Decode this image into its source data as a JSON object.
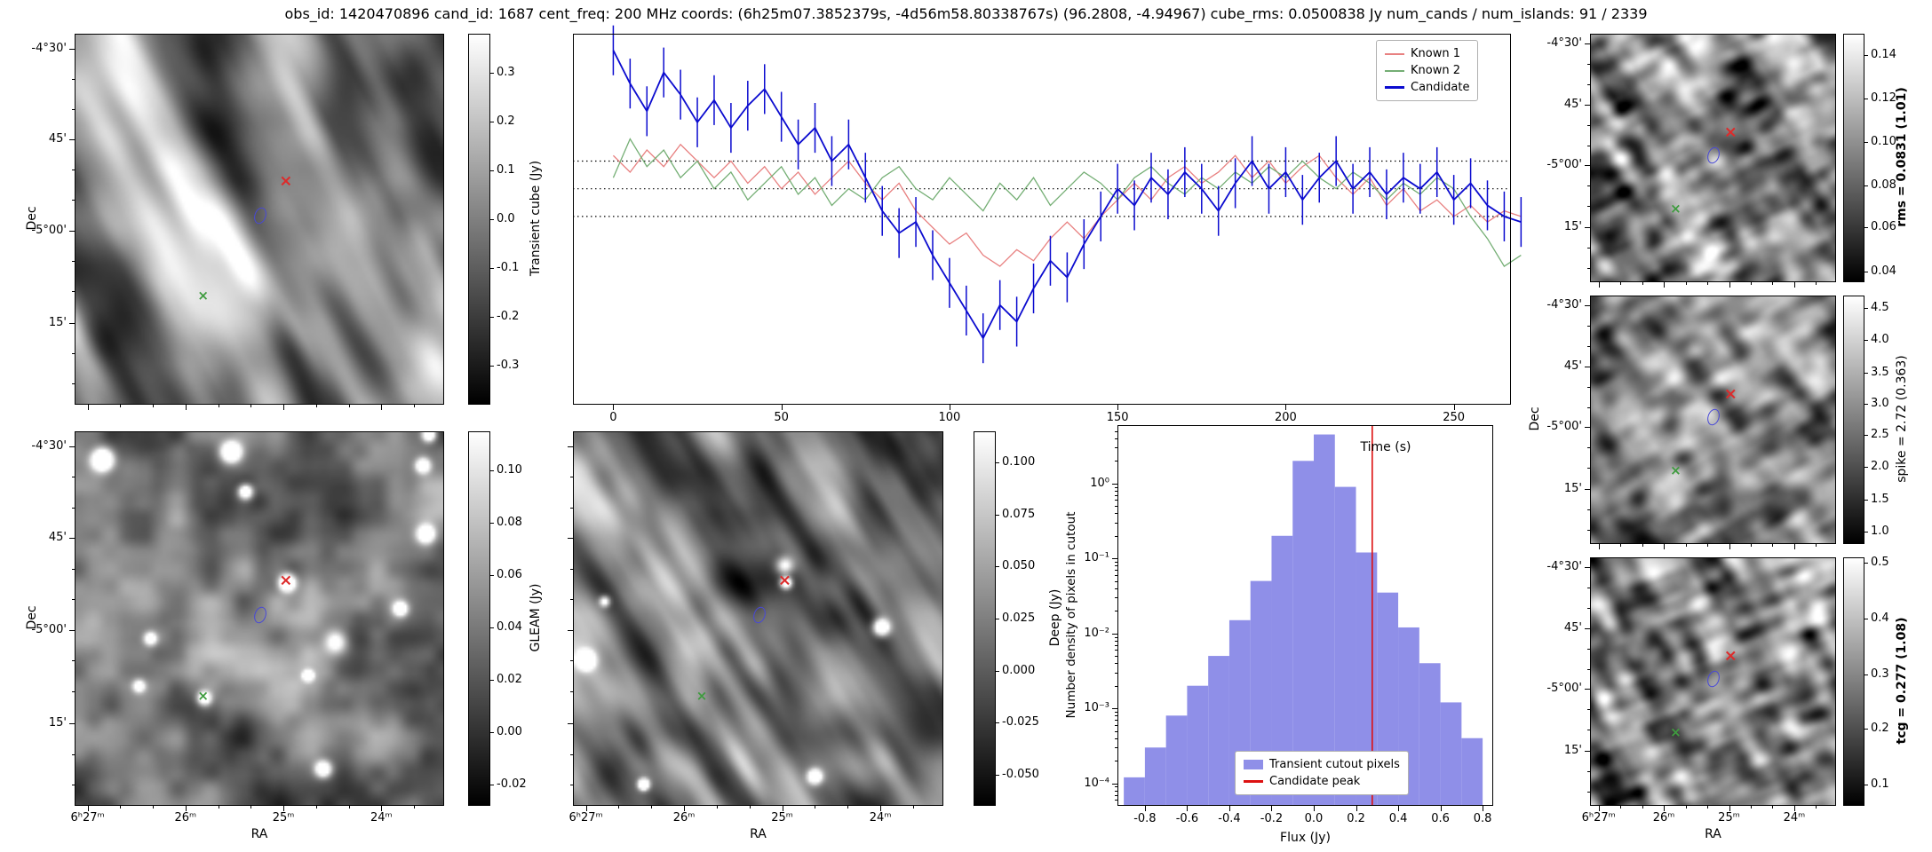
{
  "title": "obs_id: 1420470896 cand_id: 1687 cent_freq: 200 MHz coords: (6h25m07.3852379s, -4d56m58.80338767s) (96.2808, -4.94967) cube_rms: 0.0500838 Jy num_cands / num_islands: 91 / 2339",
  "axes": {
    "dec_label": "Dec",
    "ra_label": "RA",
    "dec_ticks": [
      "-4°30'",
      "45'",
      "-5°00'",
      "15'"
    ],
    "dec_tick_pos": [
      0.04,
      0.285,
      0.53,
      0.78
    ],
    "ra_ticks": [
      "6ʰ27ᵐ",
      "26ᵐ",
      "25ᵐ",
      "24ᵐ"
    ],
    "ra_tick_pos": [
      0.035,
      0.3,
      0.565,
      0.83
    ]
  },
  "markers": [
    {
      "kind": "red-x",
      "name": "candidate-position-marker",
      "rx": 0.572,
      "ry": 0.4,
      "color": "#dd2b2b"
    },
    {
      "kind": "blue-ellipse",
      "name": "candidate-region-marker",
      "rx": 0.503,
      "ry": 0.49,
      "color": "#4848d8"
    },
    {
      "kind": "green-x",
      "name": "known-source-marker",
      "rx": 0.347,
      "ry": 0.71,
      "color": "#3f9b3f"
    }
  ],
  "cutouts": {
    "transient": {
      "y_labels": true,
      "x_labels": false,
      "dec_label": true,
      "ra_label": false,
      "dec_dx": 48,
      "colorbar": {
        "label": "Transient cube (Jy)",
        "bold": false,
        "label_dx": 76,
        "ticks": [
          "0.3",
          "0.2",
          "0.1",
          "0.0",
          "-0.1",
          "-0.2",
          "-0.3"
        ],
        "tick_pos": [
          0.105,
          0.237,
          0.368,
          0.5,
          0.632,
          0.763,
          0.895
        ]
      },
      "texture": {
        "seed": 3,
        "bias": 0.52,
        "contrast": 1.5,
        "octaves": [
          [
            62,
            1.5,
            10,
            0.5
          ],
          [
            62,
            4,
            18,
            0.25
          ],
          [
            0,
            8,
            8,
            0.22
          ]
        ],
        "blobs": [],
        "random_blobs": 0
      }
    },
    "gleam": {
      "y_labels": true,
      "x_labels": true,
      "dec_label": true,
      "ra_label": true,
      "dec_dx": 48,
      "colorbar": {
        "label": "GLEAM (Jy)",
        "bold": false,
        "label_dx": 76,
        "ticks": [
          "0.10",
          "0.08",
          "0.06",
          "0.04",
          "0.02",
          "0.00",
          "-0.02"
        ],
        "tick_pos": [
          0.105,
          0.245,
          0.385,
          0.524,
          0.664,
          0.804,
          0.944
        ]
      },
      "texture": {
        "seed": 9,
        "bias": 0.44,
        "contrast": 1.1,
        "octaves": [
          [
            0,
            5,
            5,
            0.5
          ],
          [
            0,
            11,
            11,
            0.28
          ],
          [
            0,
            22,
            22,
            0.16
          ]
        ],
        "blobs": [
          [
            0.572,
            0.4,
            2.0,
            1.2
          ],
          [
            0.347,
            0.71,
            1.7,
            0.9
          ],
          [
            0.07,
            0.07,
            2.6,
            1.3
          ],
          [
            0.42,
            0.05,
            2.4,
            1.2
          ],
          [
            0.95,
            0.27,
            2.2,
            1.1
          ],
          [
            0.67,
            0.9,
            2.0,
            1.0
          ],
          [
            0.2,
            0.55,
            1.6,
            0.8
          ],
          [
            0.88,
            0.47,
            1.8,
            0.9
          ]
        ],
        "random_blobs": 6
      }
    },
    "deep": {
      "y_labels": false,
      "x_labels": true,
      "dec_label": false,
      "ra_label": true,
      "dec_dx": 48,
      "colorbar": {
        "label": "Deep (Jy)",
        "bold": false,
        "label_dx": 92,
        "ticks": [
          "0.100",
          "0.075",
          "0.050",
          "0.025",
          "0.000",
          "-0.025",
          "-0.050"
        ],
        "tick_pos": [
          0.083,
          0.222,
          0.361,
          0.5,
          0.639,
          0.778,
          0.917
        ]
      },
      "texture": {
        "seed": 5,
        "bias": 0.5,
        "contrast": 1.45,
        "octaves": [
          [
            58,
            2,
            13,
            0.45
          ],
          [
            58,
            5,
            24,
            0.25
          ],
          [
            0,
            10,
            10,
            0.22
          ]
        ],
        "blobs": [
          [
            0.572,
            0.4,
            1.4,
            0.9
          ],
          [
            0.83,
            0.52,
            2.0,
            0.9
          ],
          [
            0.65,
            0.92,
            1.8,
            0.8
          ],
          [
            0.08,
            0.45,
            1.3,
            0.6
          ]
        ],
        "random_blobs": 3
      }
    },
    "rms": {
      "y_labels": true,
      "x_labels": false,
      "dec_label": false,
      "ra_label": false,
      "dec_dx": 62,
      "colorbar": {
        "label": "rms = 0.0831 (1.01)",
        "bold": true,
        "label_dx": 66,
        "ticks": [
          "0.14",
          "0.12",
          "0.10",
          "0.08",
          "0.06",
          "0.04"
        ],
        "tick_pos": [
          0.087,
          0.26,
          0.435,
          0.61,
          0.78,
          0.956
        ]
      },
      "texture": {
        "seed": 13,
        "bias": 0.5,
        "contrast": 1.65,
        "octaves": [
          [
            55,
            4,
            16,
            0.38
          ],
          [
            -25,
            8,
            22,
            0.28
          ],
          [
            0,
            16,
            16,
            0.26
          ]
        ],
        "blobs": [],
        "random_blobs": 0
      }
    },
    "spike": {
      "y_labels": true,
      "x_labels": false,
      "dec_label": true,
      "ra_label": false,
      "dec_dx": 62,
      "colorbar": {
        "label": "spike = 2.72 (0.363)",
        "bold": false,
        "label_dx": 66,
        "ticks": [
          "4.5",
          "4.0",
          "3.5",
          "3.0",
          "2.5",
          "2.0",
          "1.5",
          "1.0"
        ],
        "tick_pos": [
          0.05,
          0.18,
          0.31,
          0.435,
          0.56,
          0.69,
          0.82,
          0.95
        ]
      },
      "texture": {
        "seed": 17,
        "bias": 0.5,
        "contrast": 1.45,
        "octaves": [
          [
            50,
            4,
            15,
            0.36
          ],
          [
            -30,
            8,
            20,
            0.28
          ],
          [
            0,
            15,
            15,
            0.26
          ]
        ],
        "blobs": [],
        "random_blobs": 0
      }
    },
    "tcg": {
      "y_labels": true,
      "x_labels": true,
      "dec_label": false,
      "ra_label": true,
      "dec_dx": 62,
      "colorbar": {
        "label": "tcg = 0.277 (1.08)",
        "bold": true,
        "label_dx": 66,
        "ticks": [
          "0.5",
          "0.4",
          "0.3",
          "0.2",
          "0.1"
        ],
        "tick_pos": [
          0.02,
          0.245,
          0.47,
          0.69,
          0.915
        ]
      },
      "texture": {
        "seed": 21,
        "bias": 0.5,
        "contrast": 1.6,
        "octaves": [
          [
            60,
            4,
            16,
            0.38
          ],
          [
            -20,
            8,
            22,
            0.28
          ],
          [
            0,
            16,
            16,
            0.26
          ]
        ],
        "blobs": [],
        "random_blobs": 0
      }
    }
  },
  "chart_data": [
    {
      "type": "line",
      "title": "",
      "xlabel": "Time (s)",
      "ylabel": "",
      "xlim": [
        -12,
        267
      ],
      "ylim": [
        -0.39,
        0.28
      ],
      "hlines": [
        0.05,
        0.0,
        -0.05
      ],
      "xticks": [
        0,
        50,
        100,
        150,
        200,
        250
      ],
      "xtick_labels": [
        "0",
        "50",
        "100",
        "150",
        "200",
        "250"
      ],
      "legend_position": "top-right",
      "grid": false,
      "x": [
        0,
        5,
        10,
        15,
        20,
        25,
        30,
        35,
        40,
        45,
        50,
        55,
        60,
        65,
        70,
        75,
        80,
        85,
        90,
        95,
        100,
        105,
        110,
        115,
        120,
        125,
        130,
        135,
        140,
        145,
        150,
        155,
        160,
        165,
        170,
        175,
        180,
        185,
        190,
        195,
        200,
        205,
        210,
        215,
        220,
        225,
        230,
        235,
        240,
        245,
        250,
        255,
        260,
        265,
        270
      ],
      "series": [
        {
          "name": "Known 1",
          "color": "#e88181",
          "values": [
            0.06,
            0.03,
            0.07,
            0.04,
            0.08,
            0.05,
            0.02,
            0.05,
            0.01,
            0.04,
            0.0,
            0.03,
            -0.01,
            0.02,
            0.05,
            0.01,
            -0.02,
            0.01,
            -0.04,
            -0.07,
            -0.1,
            -0.08,
            -0.12,
            -0.14,
            -0.11,
            -0.13,
            -0.09,
            -0.06,
            -0.09,
            -0.05,
            -0.02,
            0.01,
            -0.02,
            0.02,
            0.04,
            0.01,
            0.03,
            0.06,
            0.02,
            0.05,
            0.01,
            0.04,
            0.06,
            0.02,
            -0.01,
            0.02,
            -0.03,
            0.0,
            -0.04,
            -0.02,
            -0.05,
            -0.03,
            -0.06,
            -0.04,
            -0.05
          ]
        },
        {
          "name": "Known 2",
          "color": "#74ae74",
          "values": [
            0.02,
            0.09,
            0.04,
            0.07,
            0.02,
            0.05,
            0.0,
            0.03,
            -0.02,
            0.01,
            0.04,
            -0.01,
            0.02,
            -0.03,
            0.0,
            -0.02,
            0.02,
            0.04,
            0.0,
            -0.02,
            0.02,
            -0.01,
            -0.04,
            0.01,
            -0.02,
            0.02,
            -0.03,
            0.0,
            0.03,
            0.01,
            -0.02,
            0.02,
            0.04,
            0.01,
            -0.01,
            0.02,
            0.0,
            0.03,
            0.01,
            0.04,
            0.02,
            0.05,
            0.02,
            0.0,
            0.03,
            0.01,
            -0.02,
            0.01,
            -0.01,
            0.02,
            0.0,
            -0.05,
            -0.09,
            -0.14,
            -0.12
          ]
        },
        {
          "name": "Candidate",
          "color": "#0b0bcf",
          "error": 0.045,
          "values": [
            0.25,
            0.19,
            0.14,
            0.21,
            0.17,
            0.12,
            0.16,
            0.11,
            0.15,
            0.18,
            0.13,
            0.08,
            0.11,
            0.05,
            0.08,
            0.02,
            -0.04,
            -0.08,
            -0.06,
            -0.12,
            -0.17,
            -0.22,
            -0.27,
            -0.21,
            -0.24,
            -0.18,
            -0.13,
            -0.16,
            -0.1,
            -0.05,
            0.0,
            -0.03,
            0.02,
            -0.01,
            0.03,
            0.0,
            -0.04,
            0.01,
            0.05,
            0.0,
            0.03,
            -0.02,
            0.02,
            0.05,
            0.0,
            0.03,
            -0.01,
            0.02,
            0.0,
            0.03,
            -0.02,
            0.01,
            -0.03,
            -0.05,
            -0.06
          ]
        }
      ]
    },
    {
      "type": "bar",
      "title": "",
      "xlabel": "Flux (Jy)",
      "ylabel": "Number density of pixels in cutout",
      "xlim": [
        -0.93,
        0.85
      ],
      "ylog": true,
      "ylim": [
        5e-05,
        6
      ],
      "bin_width": 0.1,
      "bin_centers": [
        -0.85,
        -0.75,
        -0.65,
        -0.55,
        -0.45,
        -0.35,
        -0.25,
        -0.15,
        -0.05,
        0.05,
        0.15,
        0.25,
        0.35,
        0.45,
        0.55,
        0.65,
        0.75
      ],
      "values": [
        0.00012,
        0.0003,
        0.0008,
        0.002,
        0.005,
        0.015,
        0.05,
        0.2,
        2.0,
        4.5,
        0.9,
        0.12,
        0.035,
        0.012,
        0.004,
        0.0012,
        0.0004
      ],
      "bar_color": "#8f8fe8",
      "vline": {
        "x": 0.277,
        "color": "#dd1111"
      },
      "legend": [
        "Transient cutout pixels",
        "Candidate peak"
      ],
      "xticks": [
        -0.8,
        -0.6,
        -0.4,
        -0.2,
        0.0,
        0.2,
        0.4,
        0.6,
        0.8
      ],
      "xtick_labels": [
        "-0.8",
        "-0.6",
        "-0.4",
        "-0.2",
        "0.0",
        "0.2",
        "0.4",
        "0.6",
        "0.8"
      ],
      "yticks": [
        1,
        0.1,
        0.01,
        0.001,
        0.0001
      ],
      "ytick_labels": [
        "10⁰",
        "10⁻¹",
        "10⁻²",
        "10⁻³",
        "10⁻⁴"
      ],
      "legend_position": "bottom-center"
    }
  ]
}
